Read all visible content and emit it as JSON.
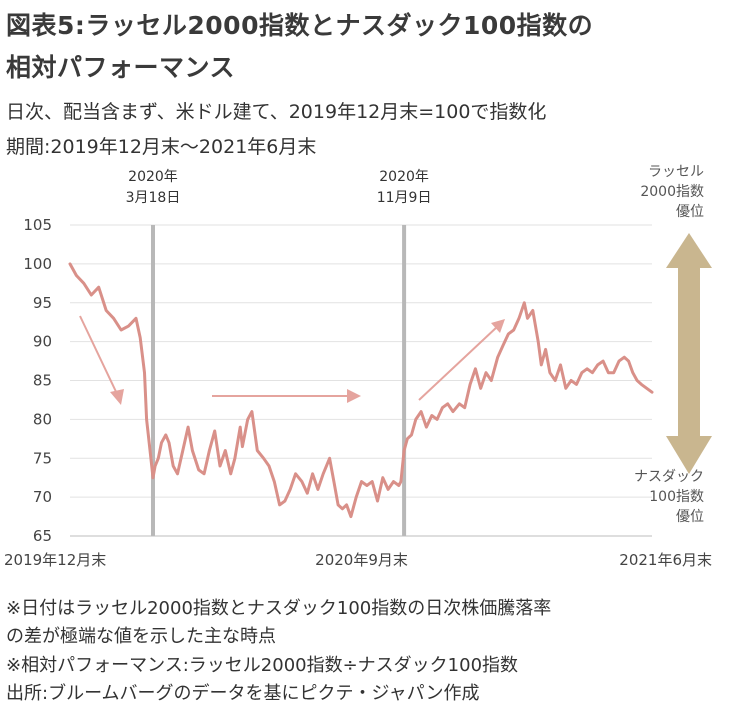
{
  "title_line1": "図表5:ラッセル2000指数とナスダック100指数の",
  "title_line2": "相対パフォーマンス",
  "subtitle_line1": "日次、配当含まず、米ドル建て、2019年12月末=100で指数化",
  "subtitle_line2": "期間:2019年12月末〜2021年6月末",
  "notes": [
    "※日付はラッセル2000指数とナスダック100指数の日次株価騰落率",
    "の差が極端な値を示した主な時点",
    "※相対パフォーマンス:ラッセル2000指数÷ナスダック100指数",
    "出所:ブルームバーグのデータを基にピクテ・ジャパン作成"
  ],
  "colors": {
    "line": "#d99089",
    "vline": "#b8b8b8",
    "grid": "#e2e2e2",
    "side_arrow": "#c9b68f"
  },
  "chart_data": {
    "type": "line",
    "ylim": [
      65,
      105
    ],
    "yticks": [
      65,
      70,
      75,
      80,
      85,
      90,
      95,
      100,
      105
    ],
    "xlim": [
      "2019-12-31",
      "2021-06-30"
    ],
    "xticks": [
      {
        "date": "2019-12-31",
        "label": "2019年12月末"
      },
      {
        "date": "2020-09-30",
        "label": "2020年9月末"
      },
      {
        "date": "2021-06-30",
        "label": "2021年6月末"
      }
    ],
    "grid": "horizontal",
    "annotations": [
      {
        "date": "2020-03-18",
        "label_line1": "2020年",
        "label_line2": "3月18日"
      },
      {
        "date": "2020-11-09",
        "label_line1": "2020年",
        "label_line2": "11月9日"
      }
    ],
    "side_labels": {
      "top": [
        "ラッセル",
        "2000指数",
        "優位"
      ],
      "bottom": [
        "ナスダック",
        "100指数",
        "優位"
      ]
    },
    "series": [
      {
        "points": [
          [
            "2019-12-31",
            100
          ],
          [
            "2020-01-06",
            98.5
          ],
          [
            "2020-01-13",
            97.5
          ],
          [
            "2020-01-20",
            96
          ],
          [
            "2020-01-27",
            97
          ],
          [
            "2020-02-03",
            94
          ],
          [
            "2020-02-10",
            93
          ],
          [
            "2020-02-17",
            91.5
          ],
          [
            "2020-02-24",
            92
          ],
          [
            "2020-03-02",
            93
          ],
          [
            "2020-03-06",
            90.5
          ],
          [
            "2020-03-10",
            86
          ],
          [
            "2020-03-12",
            80
          ],
          [
            "2020-03-16",
            75
          ],
          [
            "2020-03-18",
            72.5
          ],
          [
            "2020-03-20",
            74
          ],
          [
            "2020-03-23",
            75
          ],
          [
            "2020-03-26",
            77
          ],
          [
            "2020-03-30",
            78
          ],
          [
            "2020-04-02",
            77
          ],
          [
            "2020-04-06",
            74
          ],
          [
            "2020-04-10",
            73
          ],
          [
            "2020-04-15",
            76
          ],
          [
            "2020-04-20",
            79
          ],
          [
            "2020-04-24",
            76
          ],
          [
            "2020-04-30",
            73.5
          ],
          [
            "2020-05-05",
            73
          ],
          [
            "2020-05-10",
            76
          ],
          [
            "2020-05-15",
            78.5
          ],
          [
            "2020-05-20",
            74
          ],
          [
            "2020-05-25",
            76
          ],
          [
            "2020-05-30",
            73
          ],
          [
            "2020-06-03",
            75
          ],
          [
            "2020-06-08",
            79
          ],
          [
            "2020-06-10",
            76.5
          ],
          [
            "2020-06-15",
            80
          ],
          [
            "2020-06-19",
            81
          ],
          [
            "2020-06-24",
            76
          ],
          [
            "2020-06-30",
            75
          ],
          [
            "2020-07-05",
            74
          ],
          [
            "2020-07-10",
            72
          ],
          [
            "2020-07-15",
            69
          ],
          [
            "2020-07-20",
            69.5
          ],
          [
            "2020-07-25",
            71
          ],
          [
            "2020-07-30",
            73
          ],
          [
            "2020-08-05",
            72
          ],
          [
            "2020-08-10",
            70.5
          ],
          [
            "2020-08-15",
            73
          ],
          [
            "2020-08-20",
            71
          ],
          [
            "2020-08-25",
            73
          ],
          [
            "2020-08-31",
            75
          ],
          [
            "2020-09-04",
            72
          ],
          [
            "2020-09-08",
            69
          ],
          [
            "2020-09-12",
            68.5
          ],
          [
            "2020-09-16",
            69
          ],
          [
            "2020-09-20",
            67.5
          ],
          [
            "2020-09-25",
            70
          ],
          [
            "2020-09-30",
            72
          ],
          [
            "2020-10-05",
            71.5
          ],
          [
            "2020-10-10",
            72
          ],
          [
            "2020-10-15",
            69.5
          ],
          [
            "2020-10-20",
            72.5
          ],
          [
            "2020-10-25",
            71
          ],
          [
            "2020-10-30",
            72
          ],
          [
            "2020-11-04",
            71.5
          ],
          [
            "2020-11-06",
            72
          ],
          [
            "2020-11-09",
            76
          ],
          [
            "2020-11-12",
            77.5
          ],
          [
            "2020-11-16",
            78
          ],
          [
            "2020-11-20",
            80
          ],
          [
            "2020-11-25",
            81
          ],
          [
            "2020-11-30",
            79
          ],
          [
            "2020-12-05",
            80.5
          ],
          [
            "2020-12-10",
            80
          ],
          [
            "2020-12-15",
            81.5
          ],
          [
            "2020-12-20",
            82
          ],
          [
            "2020-12-25",
            81
          ],
          [
            "2020-12-31",
            82
          ],
          [
            "2021-01-05",
            81.5
          ],
          [
            "2021-01-10",
            84.5
          ],
          [
            "2021-01-15",
            86.5
          ],
          [
            "2021-01-20",
            84
          ],
          [
            "2021-01-25",
            86
          ],
          [
            "2021-01-30",
            85
          ],
          [
            "2021-02-05",
            88
          ],
          [
            "2021-02-10",
            89.5
          ],
          [
            "2021-02-15",
            91
          ],
          [
            "2021-02-20",
            91.5
          ],
          [
            "2021-02-25",
            93
          ],
          [
            "2021-03-02",
            95
          ],
          [
            "2021-03-05",
            93
          ],
          [
            "2021-03-10",
            94
          ],
          [
            "2021-03-15",
            90
          ],
          [
            "2021-03-18",
            87
          ],
          [
            "2021-03-22",
            89
          ],
          [
            "2021-03-26",
            86
          ],
          [
            "2021-03-31",
            85
          ],
          [
            "2021-04-05",
            87
          ],
          [
            "2021-04-10",
            84
          ],
          [
            "2021-04-15",
            85
          ],
          [
            "2021-04-20",
            84.5
          ],
          [
            "2021-04-25",
            86
          ],
          [
            "2021-04-30",
            86.5
          ],
          [
            "2021-05-05",
            86
          ],
          [
            "2021-05-10",
            87
          ],
          [
            "2021-05-15",
            87.5
          ],
          [
            "2021-05-20",
            86
          ],
          [
            "2021-05-25",
            86
          ],
          [
            "2021-05-30",
            87.5
          ],
          [
            "2021-06-04",
            88
          ],
          [
            "2021-06-08",
            87.5
          ],
          [
            "2021-06-12",
            86
          ],
          [
            "2021-06-16",
            85
          ],
          [
            "2021-06-20",
            84.5
          ],
          [
            "2021-06-25",
            84
          ],
          [
            "2021-06-30",
            83.5
          ]
        ]
      }
    ]
  }
}
